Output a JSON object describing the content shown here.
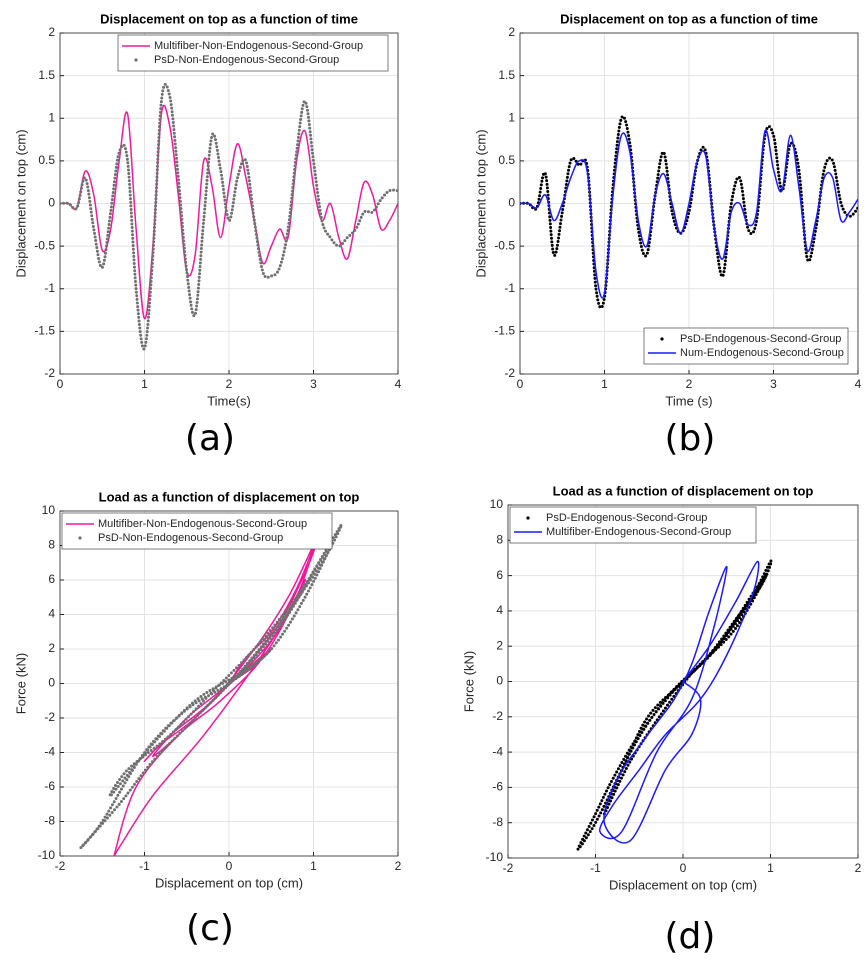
{
  "chart_data": [
    {
      "type": "line",
      "title": "Displacement on top as a function of time",
      "x_label": "Time(s)",
      "y_label": "Displacement on top (cm)",
      "caption": "(a)",
      "xlim": [
        0,
        4
      ],
      "xticks": [
        0,
        1,
        2,
        3,
        4
      ],
      "ylim": [
        -2,
        2
      ],
      "yticks": [
        -2,
        -1.5,
        -1,
        -0.5,
        0,
        0.5,
        1,
        1.5,
        2
      ],
      "grid": true,
      "legend": "upper right",
      "x": [
        0,
        0.1,
        0.2,
        0.3,
        0.4,
        0.5,
        0.6,
        0.7,
        0.8,
        0.9,
        1.0,
        1.1,
        1.2,
        1.3,
        1.4,
        1.5,
        1.6,
        1.7,
        1.8,
        1.9,
        2.0,
        2.1,
        2.2,
        2.3,
        2.4,
        2.5,
        2.6,
        2.7,
        2.8,
        2.9,
        3.0,
        3.1,
        3.2,
        3.3,
        3.4,
        3.5,
        3.6,
        3.7,
        3.8,
        3.9,
        4.0
      ],
      "series": [
        {
          "name": "Multifiber-Non-Endogenous-Second-Group",
          "color": "#f0199b",
          "style": "line",
          "values": [
            0,
            0,
            -0.05,
            0.38,
            0.1,
            -0.55,
            -0.3,
            0.5,
            1.05,
            -0.3,
            -1.35,
            -0.5,
            1.05,
            0.9,
            0.1,
            -0.8,
            -0.6,
            0.5,
            0.2,
            -0.4,
            0.2,
            0.7,
            0.3,
            -0.2,
            -0.7,
            -0.5,
            -0.3,
            -0.4,
            0.5,
            0.85,
            0.2,
            -0.2,
            0,
            -0.4,
            -0.65,
            -0.2,
            0.25,
            0.1,
            -0.3,
            -0.2,
            0
          ]
        },
        {
          "name": "PsD-Non-Endogenous-Second-Group",
          "color": "#707070",
          "style": "dots",
          "values": [
            0,
            0,
            -0.05,
            0.3,
            -0.3,
            -0.75,
            -0.1,
            0.6,
            0.5,
            -1.0,
            -1.7,
            -0.6,
            1.2,
            1.25,
            0.3,
            -0.8,
            -1.3,
            -0.2,
            0.8,
            0.4,
            -0.2,
            0.3,
            0.5,
            -0.2,
            -0.8,
            -0.85,
            -0.75,
            -0.3,
            0.6,
            1.2,
            0.5,
            -0.2,
            -0.4,
            -0.5,
            -0.4,
            -0.3,
            -0.1,
            -0.1,
            0.05,
            0.15,
            0.15
          ]
        }
      ]
    },
    {
      "type": "line",
      "title": "Displacement on top as a function of time",
      "x_label": "Time (s)",
      "y_label": "Displacement on top (cm)",
      "caption": "(b)",
      "xlim": [
        0,
        4
      ],
      "xticks": [
        0,
        1,
        2,
        3,
        4
      ],
      "ylim": [
        -2,
        2
      ],
      "yticks": [
        -2,
        -1.5,
        -1,
        -0.5,
        0,
        0.5,
        1,
        1.5,
        2
      ],
      "grid": true,
      "legend": "lower right",
      "x": [
        0,
        0.1,
        0.2,
        0.3,
        0.4,
        0.5,
        0.6,
        0.7,
        0.8,
        0.9,
        1.0,
        1.1,
        1.2,
        1.3,
        1.4,
        1.5,
        1.6,
        1.7,
        1.8,
        1.9,
        2.0,
        2.1,
        2.2,
        2.3,
        2.4,
        2.5,
        2.6,
        2.7,
        2.8,
        2.9,
        3.0,
        3.1,
        3.2,
        3.3,
        3.4,
        3.5,
        3.6,
        3.7,
        3.8,
        3.9,
        4.0
      ],
      "series": [
        {
          "name": "PsD-Endogenous-Second-Group",
          "color": "#000000",
          "style": "dots",
          "values": [
            0,
            0,
            -0.05,
            0.35,
            -0.6,
            -0.1,
            0.5,
            0.45,
            0.4,
            -1.0,
            -1.1,
            0.2,
            1.0,
            0.7,
            -0.3,
            -0.6,
            0.1,
            0.6,
            -0.1,
            -0.35,
            -0.1,
            0.5,
            0.6,
            -0.3,
            -0.85,
            0,
            0.3,
            -0.3,
            -0.2,
            0.8,
            0.8,
            0.15,
            0.7,
            0.4,
            -0.65,
            -0.3,
            0.4,
            0.5,
            0,
            -0.15,
            -0.05
          ]
        },
        {
          "name": "Num-Endogenous-Second-Group",
          "color": "#1a1aff",
          "style": "line",
          "values": [
            0,
            0,
            -0.05,
            0.1,
            -0.2,
            0,
            0.3,
            0.5,
            0.35,
            -0.8,
            -1.05,
            0.1,
            0.8,
            0.6,
            -0.2,
            -0.5,
            0.1,
            0.35,
            0,
            -0.35,
            0,
            0.5,
            0.55,
            -0.3,
            -0.65,
            -0.1,
            0,
            -0.25,
            -0.1,
            0.85,
            0.4,
            0.15,
            0.8,
            0.2,
            -0.55,
            -0.2,
            0.3,
            0.3,
            -0.2,
            -0.1,
            0.05
          ]
        }
      ]
    },
    {
      "type": "scatter",
      "title": "Load as a function of displacement on top",
      "x_label": "Displacement on top (cm)",
      "y_label": "Force (kN)",
      "caption": "(c)",
      "xlim": [
        -2,
        2
      ],
      "xticks": [
        -2,
        -1,
        0,
        1,
        2
      ],
      "ylim": [
        -10,
        10
      ],
      "yticks": [
        -10,
        -8,
        -6,
        -4,
        -2,
        0,
        2,
        4,
        6,
        8,
        10
      ],
      "grid": true,
      "legend": "upper left",
      "series": [
        {
          "name": "Multifiber-Non-Endogenous-Second-Group",
          "color": "#f0199b",
          "style": "line",
          "x": [
            0,
            0.2,
            0.5,
            0.8,
            1.0,
            0.7,
            0.3,
            -0.2,
            -0.7,
            -1.0,
            -0.8,
            -0.4,
            0.1,
            0.6,
            0.95,
            1.05,
            0.8,
            0.4,
            -0.1,
            -0.6,
            -1.1,
            -1.35,
            -1.3,
            -0.9,
            -0.3,
            0.3,
            0.7,
            0.9,
            0.5,
            0,
            -0.5,
            -0.9,
            -0.6,
            -0.2,
            0.2,
            0.5,
            0.3,
            0
          ],
          "values": [
            0,
            1.5,
            3,
            5.5,
            8,
            5,
            2,
            -1,
            -3,
            -4.5,
            -3.5,
            -2,
            0.5,
            3.5,
            7,
            8.5,
            5,
            1.5,
            -1,
            -3,
            -6,
            -9.8,
            -9.5,
            -6.5,
            -3,
            1,
            4,
            6,
            2.5,
            0,
            -2,
            -4.2,
            -3,
            -1,
            0.8,
            2,
            1,
            0
          ]
        },
        {
          "name": "PsD-Non-Endogenous-Second-Group",
          "color": "#707070",
          "style": "dots",
          "x": [
            0,
            0.3,
            0.7,
            1.0,
            1.33,
            1.1,
            0.6,
            0.1,
            -0.4,
            -0.9,
            -1.3,
            -1.75,
            -1.5,
            -1.0,
            -0.5,
            0,
            0.5,
            0.9,
            1.2,
            0.8,
            0.3,
            -0.2,
            -0.7,
            -1.2,
            -1.4,
            -0.9,
            -0.4,
            0.1,
            0.4,
            0
          ],
          "values": [
            0,
            1.5,
            4,
            6.5,
            9.2,
            7,
            3.5,
            0.5,
            -2,
            -4.5,
            -7,
            -9.5,
            -8,
            -4,
            -1.5,
            0,
            2,
            5,
            8,
            5,
            2,
            -0.5,
            -3,
            -5,
            -6.5,
            -3.5,
            -1,
            0.5,
            1.5,
            0
          ]
        }
      ]
    },
    {
      "type": "scatter",
      "title": "Load as a function of displacement on top",
      "x_label": "Displacement on top (cm)",
      "y_label": "Force (kN)",
      "caption": "(d)",
      "xlim": [
        -2,
        2
      ],
      "xticks": [
        -2,
        -1,
        0,
        1,
        2
      ],
      "ylim": [
        -10,
        10
      ],
      "yticks": [
        -10,
        -8,
        -6,
        -4,
        -2,
        0,
        2,
        4,
        6,
        8,
        10
      ],
      "grid": true,
      "legend": "upper left",
      "series": [
        {
          "name": "PsD-Endogenous-Second-Group",
          "color": "#000000",
          "style": "dots",
          "x": [
            0,
            0.3,
            0.6,
            0.9,
            1.0,
            0.7,
            0.3,
            -0.1,
            -0.5,
            -0.8,
            -1.0,
            -1.2,
            -1.0,
            -0.7,
            -0.4,
            0,
            0.4,
            0.8,
            0.95,
            0.6,
            0.2,
            -0.2,
            -0.6,
            -0.9,
            -0.6,
            -0.2,
            0.1,
            0
          ],
          "values": [
            0,
            1.5,
            3.5,
            5.5,
            6.8,
            4,
            1.5,
            -0.5,
            -3,
            -5.5,
            -7.5,
            -9.5,
            -8,
            -5,
            -2,
            0,
            2,
            5,
            6,
            3,
            1,
            -1,
            -4,
            -7.5,
            -4.5,
            -1.5,
            0.5,
            0
          ]
        },
        {
          "name": "Multifiber-Endogenous-Second-Group",
          "color": "#1a1aff",
          "style": "line",
          "x": [
            0,
            0.3,
            0.6,
            0.85,
            0.8,
            0.5,
            0.2,
            -0.2,
            -0.5,
            -0.8,
            -0.95,
            -0.7,
            -0.3,
            0.1,
            0.35,
            0.5,
            0.3,
            0.1,
            -0.1,
            -0.4,
            -0.75,
            -0.9,
            -0.6,
            -0.2,
            0.1,
            0.2,
            0
          ],
          "values": [
            0,
            2,
            4.5,
            6.8,
            5,
            1.5,
            -1,
            -3,
            -5,
            -7,
            -8.5,
            -8.5,
            -4,
            -1,
            3,
            6.5,
            4,
            1,
            -1,
            -3,
            -5.5,
            -8,
            -9,
            -5,
            -3,
            -1,
            0
          ]
        }
      ]
    }
  ]
}
